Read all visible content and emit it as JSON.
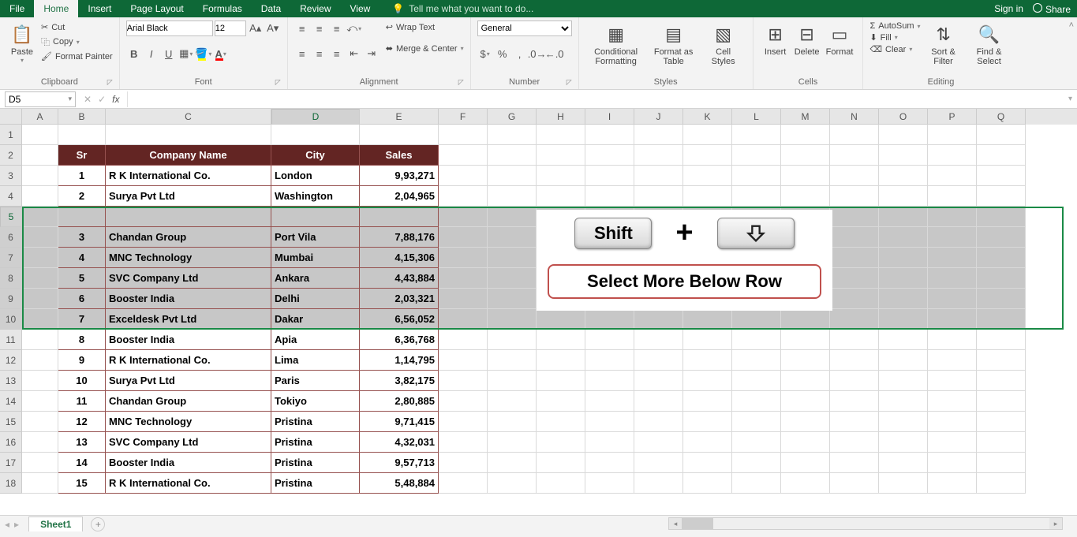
{
  "tabs": {
    "file": "File",
    "home": "Home",
    "insert": "Insert",
    "pageLayout": "Page Layout",
    "formulas": "Formulas",
    "data": "Data",
    "review": "Review",
    "view": "View"
  },
  "tellMe": "Tell me what you want to do...",
  "signIn": "Sign in",
  "share": "Share",
  "clipboard": {
    "paste": "Paste",
    "cut": "Cut",
    "copy": "Copy",
    "fp": "Format Painter",
    "label": "Clipboard"
  },
  "font": {
    "name": "Arial Black",
    "size": "12",
    "label": "Font"
  },
  "alignment": {
    "wrap": "Wrap Text",
    "merge": "Merge & Center",
    "label": "Alignment"
  },
  "number": {
    "format": "General",
    "label": "Number"
  },
  "styles": {
    "cf": "Conditional Formatting",
    "fat": "Format as Table",
    "cs": "Cell Styles",
    "label": "Styles"
  },
  "cells": {
    "ins": "Insert",
    "del": "Delete",
    "fmt": "Format",
    "label": "Cells"
  },
  "editing": {
    "autosum": "AutoSum",
    "fill": "Fill",
    "clear": "Clear",
    "sort": "Sort & Filter",
    "find": "Find & Select",
    "label": "Editing"
  },
  "nameBox": "D5",
  "colWidths": {
    "A": 46,
    "B": 60,
    "C": 210,
    "D": 112,
    "E": 100,
    "rest": 62
  },
  "cols": [
    "A",
    "B",
    "C",
    "D",
    "E",
    "F",
    "G",
    "H",
    "I",
    "J",
    "K",
    "L",
    "M",
    "N",
    "O",
    "P",
    "Q"
  ],
  "header": {
    "sr": "Sr",
    "company": "Company Name",
    "city": "City",
    "sales": "Sales"
  },
  "rows": [
    {
      "sr": "1",
      "company": "R K International Co.",
      "city": "London",
      "sales": "9,93,271"
    },
    {
      "sr": "2",
      "company": "Surya Pvt Ltd",
      "city": "Washington",
      "sales": "2,04,965"
    },
    {
      "sr": "3",
      "company": "Chandan Group",
      "city": "Port Vila",
      "sales": "7,88,176"
    },
    {
      "sr": "4",
      "company": "MNC Technology",
      "city": "Mumbai",
      "sales": "4,15,306"
    },
    {
      "sr": "5",
      "company": "SVC Company Ltd",
      "city": "Ankara",
      "sales": "4,43,884"
    },
    {
      "sr": "6",
      "company": "Booster India",
      "city": "Delhi",
      "sales": "2,03,321"
    },
    {
      "sr": "7",
      "company": "Exceldesk Pvt Ltd",
      "city": "Dakar",
      "sales": "6,56,052"
    },
    {
      "sr": "8",
      "company": "Booster India",
      "city": "Apia",
      "sales": "6,36,768"
    },
    {
      "sr": "9",
      "company": "R K International Co.",
      "city": "Lima",
      "sales": "1,14,795"
    },
    {
      "sr": "10",
      "company": "Surya Pvt Ltd",
      "city": "Paris",
      "sales": "3,82,175"
    },
    {
      "sr": "11",
      "company": "Chandan Group",
      "city": "Tokiyo",
      "sales": "2,80,885"
    },
    {
      "sr": "12",
      "company": "MNC Technology",
      "city": "Pristina",
      "sales": "9,71,415"
    },
    {
      "sr": "13",
      "company": "SVC Company Ltd",
      "city": "Pristina",
      "sales": "4,32,031"
    },
    {
      "sr": "14",
      "company": "Booster India",
      "city": "Pristina",
      "sales": "9,57,713"
    },
    {
      "sr": "15",
      "company": "R K International Co.",
      "city": "Pristina",
      "sales": "5,48,884"
    }
  ],
  "overlay": {
    "shift": "Shift",
    "plus": "+",
    "callout": "Select More Below Row"
  },
  "sheet": "Sheet1"
}
